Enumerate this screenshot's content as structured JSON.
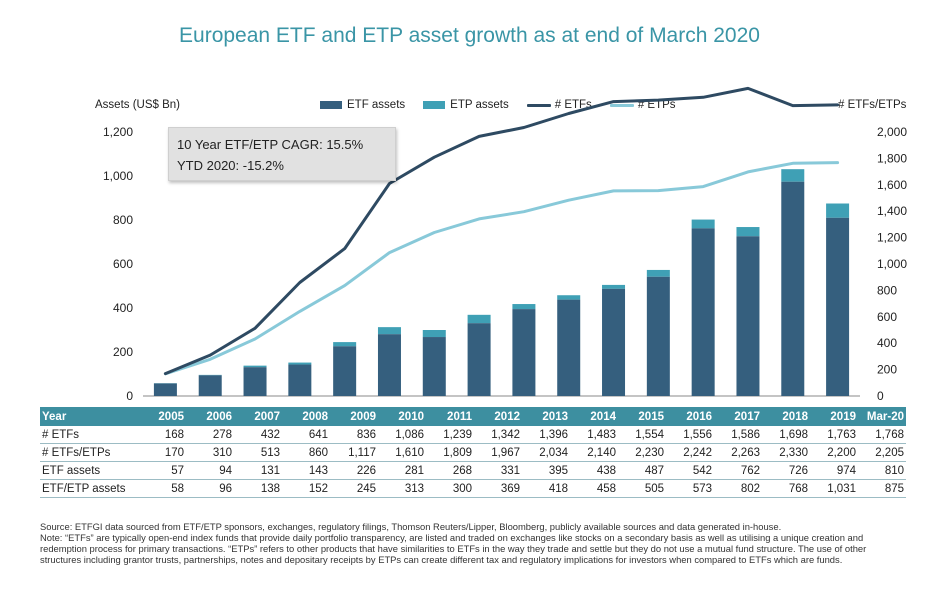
{
  "title": "European ETF and ETP asset growth as at end of March 2020",
  "left_axis_label": "Assets (US$ Bn)",
  "right_axis_label": "# ETFs/ETPs",
  "legend": [
    {
      "label": "ETF assets",
      "color": "#355f7e",
      "kind": "bar"
    },
    {
      "label": "ETP assets",
      "color": "#3fa0b5",
      "kind": "bar"
    },
    {
      "label": "# ETFs",
      "color": "#2e4a62",
      "kind": "line"
    },
    {
      "label": "# ETPs",
      "color": "#88c9d9",
      "kind": "line"
    }
  ],
  "cagr_box": {
    "line1": "10 Year ETF/ETP CAGR: 15.5%",
    "line2": "YTD 2020: -15.2%"
  },
  "chart_data": {
    "type": "bar",
    "categories": [
      "2005",
      "2006",
      "2007",
      "2008",
      "2009",
      "2010",
      "2011",
      "2012",
      "2013",
      "2014",
      "2015",
      "2016",
      "2017",
      "2018",
      "2019",
      "Mar-20"
    ],
    "left_axis": {
      "min": 0,
      "max": 1200,
      "ticks": [
        "0",
        "200",
        "400",
        "600",
        "800",
        "1,000",
        "1,200"
      ]
    },
    "right_axis": {
      "min": 0,
      "max": 2000,
      "ticks": [
        "0",
        "200",
        "400",
        "600",
        "800",
        "1,000",
        "1,200",
        "1,400",
        "1,600",
        "1,800",
        "2,000"
      ]
    },
    "etf_assets": [
      57,
      94,
      131,
      143,
      226,
      281,
      268,
      331,
      395,
      438,
      487,
      542,
      762,
      726,
      974,
      810
    ],
    "etf_etp_assets": [
      58,
      96,
      138,
      152,
      245,
      313,
      300,
      369,
      418,
      458,
      505,
      573,
      802,
      768,
      1031,
      875
    ],
    "num_etfs": [
      168,
      278,
      432,
      641,
      836,
      1086,
      1239,
      1342,
      1396,
      1483,
      1554,
      1556,
      1586,
      1698,
      1763,
      1768
    ],
    "num_etfs_etps": [
      170,
      310,
      513,
      860,
      1117,
      1610,
      1809,
      1967,
      2034,
      2140,
      2230,
      2242,
      2263,
      2330,
      2200,
      2205
    ],
    "grid": false,
    "legend_position": "top"
  },
  "table": {
    "header_label": "Year",
    "columns": [
      "2005",
      "2006",
      "2007",
      "2008",
      "2009",
      "2010",
      "2011",
      "2012",
      "2013",
      "2014",
      "2015",
      "2016",
      "2017",
      "2018",
      "2019",
      "Mar-20"
    ],
    "rows": [
      {
        "label": "# ETFs",
        "values": [
          "168",
          "278",
          "432",
          "641",
          "836",
          "1,086",
          "1,239",
          "1,342",
          "1,396",
          "1,483",
          "1,554",
          "1,556",
          "1,586",
          "1,698",
          "1,763",
          "1,768"
        ]
      },
      {
        "label": "# ETFs/ETPs",
        "values": [
          "170",
          "310",
          "513",
          "860",
          "1,117",
          "1,610",
          "1,809",
          "1,967",
          "2,034",
          "2,140",
          "2,230",
          "2,242",
          "2,263",
          "2,330",
          "2,200",
          "2,205"
        ]
      },
      {
        "label": "ETF assets",
        "values": [
          "57",
          "94",
          "131",
          "143",
          "226",
          "281",
          "268",
          "331",
          "395",
          "438",
          "487",
          "542",
          "762",
          "726",
          "974",
          "810"
        ]
      },
      {
        "label": "ETF/ETP assets",
        "values": [
          "58",
          "96",
          "138",
          "152",
          "245",
          "313",
          "300",
          "369",
          "418",
          "458",
          "505",
          "573",
          "802",
          "768",
          "1,031",
          "875"
        ]
      }
    ]
  },
  "notes": {
    "source": "Source: ETFGI data sourced from ETF/ETP sponsors, exchanges, regulatory filings, Thomson Reuters/Lipper, Bloomberg, publicly available sources and data generated in-house.",
    "note": "Note: “ETFs” are typically open-end index funds that provide daily portfolio transparency, are listed and traded on exchanges like stocks on a secondary basis as well as utilising a unique creation and redemption process for primary transactions. “ETPs” refers to other products that have similarities to ETFs in the way they trade and settle but they do not use a mutual fund structure. The use of other structures including grantor trusts, partnerships, notes and depositary receipts by ETPs can create different tax and regulatory implications for investors when compared to ETFs which are funds."
  }
}
